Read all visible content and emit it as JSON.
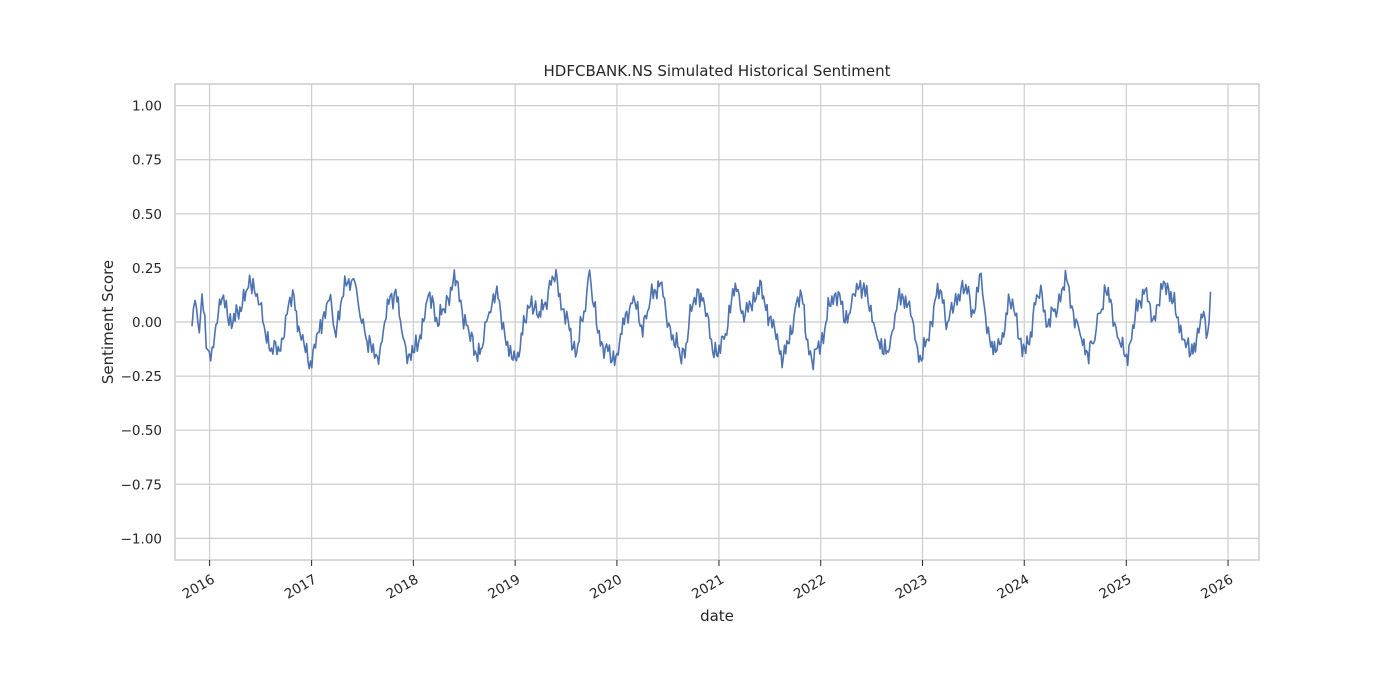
{
  "chart_data": {
    "type": "line",
    "title": "HDFCBANK.NS Simulated Historical Sentiment",
    "xlabel": "date",
    "ylabel": "Sentiment Score",
    "x_axis": "date",
    "xlim": [
      "2015-08-30",
      "2026-04-22"
    ],
    "ylim": [
      -1.1,
      1.1
    ],
    "grid": true,
    "y_ticks": [
      -1.0,
      -0.75,
      -0.5,
      -0.25,
      0.0,
      0.25,
      0.5,
      0.75,
      1.0
    ],
    "y_tick_labels": [
      "−1.00",
      "−0.75",
      "−0.50",
      "−0.25",
      "0.00",
      "0.25",
      "0.50",
      "0.75",
      "1.00"
    ],
    "x_ticks": [
      "2016-01-01",
      "2017-01-01",
      "2018-01-01",
      "2019-01-01",
      "2020-01-01",
      "2021-01-01",
      "2022-01-01",
      "2023-01-01",
      "2024-01-01",
      "2025-01-01",
      "2026-01-01"
    ],
    "x_tick_labels": [
      "2016",
      "2017",
      "2018",
      "2019",
      "2020",
      "2021",
      "2022",
      "2023",
      "2024",
      "2025",
      "2026"
    ],
    "series_color": "#4c72b0",
    "series": [
      {
        "name": "",
        "points": [
          [
            "2015-10-30",
            -0.02
          ],
          [
            "2015-11-10",
            0.1
          ],
          [
            "2015-11-25",
            -0.05
          ],
          [
            "2015-12-05",
            0.13
          ],
          [
            "2015-12-20",
            -0.12
          ],
          [
            "2016-01-05",
            -0.18
          ],
          [
            "2016-01-20",
            -0.05
          ],
          [
            "2016-02-10",
            0.08
          ],
          [
            "2016-03-01",
            0.1
          ],
          [
            "2016-03-20",
            -0.03
          ],
          [
            "2016-04-10",
            0.05
          ],
          [
            "2016-05-15",
            0.15
          ],
          [
            "2016-06-05",
            0.2
          ],
          [
            "2016-06-25",
            0.08
          ],
          [
            "2016-07-15",
            -0.02
          ],
          [
            "2016-08-10",
            -0.12
          ],
          [
            "2016-08-30",
            -0.15
          ],
          [
            "2016-09-20",
            -0.08
          ],
          [
            "2016-10-10",
            0.08
          ],
          [
            "2016-10-30",
            0.12
          ],
          [
            "2016-11-20",
            -0.05
          ],
          [
            "2016-12-10",
            -0.14
          ],
          [
            "2016-12-28",
            -0.18
          ],
          [
            "2017-01-15",
            -0.12
          ],
          [
            "2017-02-10",
            0.02
          ],
          [
            "2017-03-05",
            0.1
          ],
          [
            "2017-03-25",
            -0.04
          ],
          [
            "2017-04-15",
            0.08
          ],
          [
            "2017-05-10",
            0.18
          ],
          [
            "2017-06-01",
            0.2
          ],
          [
            "2017-06-20",
            0.06
          ],
          [
            "2017-07-10",
            -0.04
          ],
          [
            "2017-08-05",
            -0.14
          ],
          [
            "2017-08-25",
            -0.16
          ],
          [
            "2017-09-15",
            -0.04
          ],
          [
            "2017-10-10",
            0.12
          ],
          [
            "2017-10-30",
            0.15
          ],
          [
            "2017-11-20",
            -0.04
          ],
          [
            "2017-12-15",
            -0.15
          ],
          [
            "2018-01-05",
            -0.14
          ],
          [
            "2018-01-25",
            -0.06
          ],
          [
            "2018-02-15",
            0.08
          ],
          [
            "2018-03-10",
            0.12
          ],
          [
            "2018-03-30",
            -0.02
          ],
          [
            "2018-04-20",
            0.06
          ],
          [
            "2018-05-15",
            0.16
          ],
          [
            "2018-06-05",
            0.19
          ],
          [
            "2018-06-25",
            0.05
          ],
          [
            "2018-07-20",
            -0.05
          ],
          [
            "2018-08-15",
            -0.15
          ],
          [
            "2018-09-05",
            -0.12
          ],
          [
            "2018-09-25",
            0.02
          ],
          [
            "2018-10-15",
            0.13
          ],
          [
            "2018-11-05",
            0.1
          ],
          [
            "2018-11-25",
            -0.06
          ],
          [
            "2018-12-20",
            -0.17
          ],
          [
            "2019-01-10",
            -0.14
          ],
          [
            "2019-02-05",
            0.0
          ],
          [
            "2019-03-01",
            0.12
          ],
          [
            "2019-03-25",
            0.02
          ],
          [
            "2019-04-15",
            0.08
          ],
          [
            "2019-05-10",
            0.17
          ],
          [
            "2019-06-01",
            0.2
          ],
          [
            "2019-06-20",
            0.06
          ],
          [
            "2019-07-15",
            -0.04
          ],
          [
            "2019-08-10",
            -0.14
          ],
          [
            "2019-09-05",
            0.05
          ],
          [
            "2019-09-25",
            0.24
          ],
          [
            "2019-10-05",
            0.1
          ],
          [
            "2019-10-25",
            -0.05
          ],
          [
            "2019-11-20",
            -0.12
          ],
          [
            "2019-12-15",
            -0.18
          ],
          [
            "2020-01-10",
            -0.1
          ],
          [
            "2020-02-05",
            0.05
          ],
          [
            "2020-03-01",
            0.12
          ],
          [
            "2020-03-25",
            -0.02
          ],
          [
            "2020-04-20",
            0.05
          ],
          [
            "2020-05-15",
            0.15
          ],
          [
            "2020-06-05",
            0.18
          ],
          [
            "2020-06-25",
            0.04
          ],
          [
            "2020-07-20",
            -0.06
          ],
          [
            "2020-08-15",
            -0.16
          ],
          [
            "2020-09-05",
            -0.1
          ],
          [
            "2020-09-25",
            0.05
          ],
          [
            "2020-10-20",
            0.15
          ],
          [
            "2020-11-10",
            0.08
          ],
          [
            "2020-12-05",
            -0.08
          ],
          [
            "2020-12-28",
            -0.16
          ],
          [
            "2021-01-20",
            -0.08
          ],
          [
            "2021-02-15",
            0.1
          ],
          [
            "2021-03-10",
            0.15
          ],
          [
            "2021-04-01",
            0.0
          ],
          [
            "2021-04-25",
            0.08
          ],
          [
            "2021-05-20",
            0.16
          ],
          [
            "2021-06-10",
            0.12
          ],
          [
            "2021-07-01",
            0.02
          ],
          [
            "2021-07-25",
            -0.08
          ],
          [
            "2021-08-20",
            -0.16
          ],
          [
            "2021-09-10",
            -0.1
          ],
          [
            "2021-10-01",
            0.06
          ],
          [
            "2021-10-25",
            0.12
          ],
          [
            "2021-11-15",
            -0.08
          ],
          [
            "2021-12-05",
            -0.22
          ],
          [
            "2021-12-20",
            -0.12
          ],
          [
            "2022-01-15",
            -0.04
          ],
          [
            "2022-02-10",
            0.12
          ],
          [
            "2022-03-05",
            0.14
          ],
          [
            "2022-03-25",
            0.0
          ],
          [
            "2022-04-20",
            0.07
          ],
          [
            "2022-05-15",
            0.15
          ],
          [
            "2022-06-05",
            0.18
          ],
          [
            "2022-06-25",
            0.05
          ],
          [
            "2022-07-20",
            -0.06
          ],
          [
            "2022-08-15",
            -0.15
          ],
          [
            "2022-09-05",
            -0.12
          ],
          [
            "2022-09-25",
            0.04
          ],
          [
            "2022-10-20",
            0.13
          ],
          [
            "2022-11-10",
            0.08
          ],
          [
            "2022-12-05",
            -0.08
          ],
          [
            "2022-12-28",
            -0.18
          ],
          [
            "2023-01-20",
            -0.08
          ],
          [
            "2023-02-15",
            0.1
          ],
          [
            "2023-03-10",
            0.14
          ],
          [
            "2023-04-01",
            0.0
          ],
          [
            "2023-04-25",
            0.08
          ],
          [
            "2023-05-20",
            0.16
          ],
          [
            "2023-06-10",
            0.13
          ],
          [
            "2023-07-05",
            0.04
          ],
          [
            "2023-07-25",
            0.22
          ],
          [
            "2023-08-10",
            0.08
          ],
          [
            "2023-08-30",
            -0.08
          ],
          [
            "2023-09-20",
            -0.14
          ],
          [
            "2023-10-15",
            -0.05
          ],
          [
            "2023-11-10",
            0.1
          ],
          [
            "2023-12-05",
            0.04
          ],
          [
            "2023-12-25",
            -0.16
          ],
          [
            "2024-01-15",
            -0.1
          ],
          [
            "2024-02-10",
            0.08
          ],
          [
            "2024-03-05",
            0.13
          ],
          [
            "2024-03-25",
            -0.02
          ],
          [
            "2024-04-20",
            0.06
          ],
          [
            "2024-05-15",
            0.15
          ],
          [
            "2024-06-05",
            0.18
          ],
          [
            "2024-06-25",
            0.05
          ],
          [
            "2024-07-20",
            -0.06
          ],
          [
            "2024-08-15",
            -0.14
          ],
          [
            "2024-09-05",
            -0.1
          ],
          [
            "2024-09-25",
            0.04
          ],
          [
            "2024-10-20",
            0.14
          ],
          [
            "2024-11-10",
            0.08
          ],
          [
            "2024-12-05",
            -0.08
          ],
          [
            "2024-12-28",
            -0.16
          ],
          [
            "2025-01-20",
            -0.08
          ],
          [
            "2025-02-15",
            0.1
          ],
          [
            "2025-03-10",
            0.15
          ],
          [
            "2025-04-01",
            0.0
          ],
          [
            "2025-04-25",
            0.08
          ],
          [
            "2025-05-20",
            0.18
          ],
          [
            "2025-06-10",
            0.14
          ],
          [
            "2025-07-01",
            0.02
          ],
          [
            "2025-07-25",
            -0.08
          ],
          [
            "2025-08-20",
            -0.15
          ],
          [
            "2025-09-10",
            -0.08
          ],
          [
            "2025-10-01",
            0.02
          ],
          [
            "2025-10-20",
            -0.05
          ],
          [
            "2025-10-30",
            0.14
          ]
        ]
      }
    ]
  }
}
